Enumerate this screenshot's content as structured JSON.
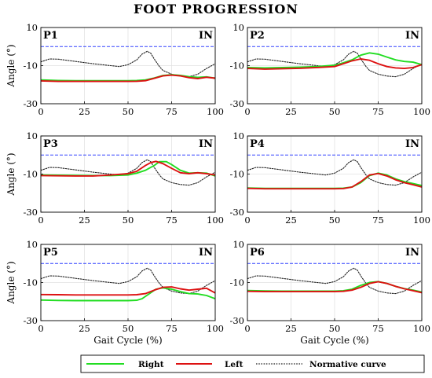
{
  "figure": {
    "title": "FOOT PROGRESSION"
  },
  "colors": {
    "right": "#22dd22",
    "left": "#dd1111",
    "normative": "#222222",
    "reference": "#3344ff",
    "grid": "#e2e2e2"
  },
  "legend": {
    "right_label": "Right",
    "left_label": "Left",
    "normative_label": "Normative curve"
  },
  "chart_data": [
    {
      "type": "line",
      "panel": "P1",
      "corner_label": "IN",
      "xlabel": "",
      "ylabel": "Angle (°)",
      "xlim": [
        0,
        100
      ],
      "ylim": [
        -30,
        10
      ],
      "x_ticks": [
        0,
        25,
        50,
        75,
        100
      ],
      "y_ticks": [
        10,
        -10,
        -30
      ],
      "grid": true,
      "reference_line": 0,
      "series": [
        {
          "name": "Right",
          "x": [
            0,
            10,
            20,
            30,
            40,
            50,
            55,
            60,
            65,
            70,
            75,
            80,
            85,
            90,
            95,
            100
          ],
          "y": [
            -17.5,
            -17.8,
            -17.9,
            -17.9,
            -17.9,
            -17.9,
            -17.8,
            -17.5,
            -16.5,
            -15.2,
            -14.8,
            -15.1,
            -15.8,
            -16.2,
            -15.9,
            -16.6
          ]
        },
        {
          "name": "Left",
          "x": [
            0,
            10,
            20,
            30,
            40,
            50,
            55,
            60,
            65,
            70,
            75,
            80,
            85,
            90,
            95,
            100
          ],
          "y": [
            -18.0,
            -18.3,
            -18.3,
            -18.3,
            -18.3,
            -18.3,
            -18.2,
            -17.9,
            -16.7,
            -15.4,
            -15.0,
            -15.4,
            -16.3,
            -16.8,
            -16.1,
            -16.6
          ]
        },
        {
          "name": "Normative curve",
          "x": [
            0,
            5,
            10,
            20,
            30,
            40,
            45,
            50,
            55,
            58,
            61,
            63,
            65,
            68,
            70,
            75,
            80,
            85,
            90,
            95,
            100
          ],
          "y": [
            -8.0,
            -6.5,
            -6.6,
            -7.8,
            -9.0,
            -10.0,
            -10.5,
            -9.5,
            -7.0,
            -4.0,
            -2.5,
            -3.5,
            -6.5,
            -10.5,
            -12.5,
            -14.5,
            -15.5,
            -15.8,
            -14.5,
            -11.5,
            -9.0
          ]
        }
      ]
    },
    {
      "type": "line",
      "panel": "P2",
      "corner_label": "IN",
      "xlabel": "",
      "ylabel": "",
      "xlim": [
        0,
        100
      ],
      "ylim": [
        -30,
        10
      ],
      "x_ticks": [
        0,
        25,
        50,
        75,
        100
      ],
      "y_ticks": [
        10,
        -10,
        -30
      ],
      "grid": true,
      "reference_line": 0,
      "series": [
        {
          "name": "Right",
          "x": [
            0,
            10,
            20,
            30,
            40,
            50,
            55,
            60,
            65,
            70,
            75,
            80,
            85,
            90,
            95,
            100
          ],
          "y": [
            -11.0,
            -11.2,
            -11.0,
            -10.8,
            -10.5,
            -9.8,
            -8.5,
            -7.0,
            -4.5,
            -3.3,
            -4.0,
            -5.5,
            -7.0,
            -7.8,
            -8.2,
            -9.5
          ]
        },
        {
          "name": "Left",
          "x": [
            0,
            10,
            20,
            30,
            40,
            50,
            55,
            60,
            65,
            70,
            75,
            80,
            85,
            90,
            95,
            100
          ],
          "y": [
            -11.5,
            -11.8,
            -11.6,
            -11.4,
            -11.0,
            -10.5,
            -9.0,
            -7.5,
            -6.5,
            -7.2,
            -9.0,
            -10.5,
            -11.2,
            -11.5,
            -11.0,
            -9.5
          ]
        },
        {
          "name": "Normative curve",
          "x": [
            0,
            5,
            10,
            20,
            30,
            40,
            45,
            50,
            55,
            58,
            61,
            63,
            65,
            68,
            70,
            75,
            80,
            85,
            90,
            95,
            100
          ],
          "y": [
            -8.0,
            -6.5,
            -6.6,
            -7.8,
            -9.0,
            -10.0,
            -10.5,
            -9.5,
            -7.0,
            -4.0,
            -2.5,
            -3.5,
            -6.5,
            -10.5,
            -12.5,
            -14.5,
            -15.5,
            -15.8,
            -14.5,
            -11.5,
            -9.0
          ]
        }
      ]
    },
    {
      "type": "line",
      "panel": "P3",
      "corner_label": "IN",
      "xlabel": "",
      "ylabel": "Angle (°)",
      "xlim": [
        0,
        100
      ],
      "ylim": [
        -30,
        10
      ],
      "x_ticks": [
        0,
        25,
        50,
        75,
        100
      ],
      "y_ticks": [
        10,
        -10,
        -30
      ],
      "grid": true,
      "reference_line": 0,
      "series": [
        {
          "name": "Right",
          "x": [
            0,
            10,
            20,
            30,
            40,
            50,
            55,
            60,
            65,
            68,
            72,
            75,
            80,
            85,
            90,
            95,
            100
          ],
          "y": [
            -10.5,
            -10.6,
            -10.7,
            -10.8,
            -10.8,
            -10.5,
            -9.5,
            -8.0,
            -5.5,
            -3.5,
            -3.5,
            -5.0,
            -8.0,
            -9.5,
            -9.3,
            -9.5,
            -11.0
          ]
        },
        {
          "name": "Left",
          "x": [
            0,
            10,
            20,
            30,
            40,
            50,
            55,
            60,
            63,
            66,
            70,
            75,
            80,
            85,
            90,
            95,
            100
          ],
          "y": [
            -10.8,
            -10.9,
            -11.0,
            -11.0,
            -10.5,
            -9.8,
            -8.5,
            -5.5,
            -4.0,
            -3.3,
            -4.5,
            -7.0,
            -9.3,
            -9.8,
            -9.3,
            -9.8,
            -10.5
          ]
        },
        {
          "name": "Normative curve",
          "x": [
            0,
            5,
            10,
            20,
            30,
            40,
            45,
            50,
            55,
            58,
            61,
            63,
            65,
            68,
            70,
            75,
            80,
            85,
            90,
            95,
            100
          ],
          "y": [
            -8.0,
            -6.5,
            -6.6,
            -7.8,
            -9.0,
            -10.0,
            -10.5,
            -9.5,
            -7.0,
            -4.0,
            -2.5,
            -3.5,
            -6.5,
            -10.5,
            -12.5,
            -14.5,
            -15.5,
            -15.8,
            -14.5,
            -11.5,
            -9.0
          ]
        }
      ]
    },
    {
      "type": "line",
      "panel": "P4",
      "corner_label": "IN",
      "xlabel": "",
      "ylabel": "",
      "xlim": [
        0,
        100
      ],
      "ylim": [
        -30,
        10
      ],
      "x_ticks": [
        0,
        25,
        50,
        75,
        100
      ],
      "y_ticks": [
        10,
        -10,
        -30
      ],
      "grid": true,
      "reference_line": 0,
      "series": [
        {
          "name": "Right",
          "x": [
            0,
            10,
            20,
            30,
            40,
            50,
            55,
            60,
            65,
            70,
            75,
            80,
            85,
            90,
            95,
            100
          ],
          "y": [
            -17.3,
            -17.5,
            -17.5,
            -17.5,
            -17.5,
            -17.5,
            -17.4,
            -16.8,
            -14.5,
            -10.8,
            -9.5,
            -10.5,
            -12.5,
            -14.0,
            -15.0,
            -16.0
          ]
        },
        {
          "name": "Left",
          "x": [
            0,
            10,
            20,
            30,
            40,
            50,
            55,
            60,
            65,
            70,
            75,
            80,
            85,
            90,
            95,
            100
          ],
          "y": [
            -17.5,
            -17.7,
            -17.7,
            -17.7,
            -17.7,
            -17.7,
            -17.6,
            -16.8,
            -14.0,
            -10.5,
            -9.7,
            -11.0,
            -13.0,
            -14.5,
            -15.6,
            -16.8
          ]
        },
        {
          "name": "Normative curve",
          "x": [
            0,
            5,
            10,
            20,
            30,
            40,
            45,
            50,
            55,
            58,
            61,
            63,
            65,
            68,
            70,
            75,
            80,
            85,
            90,
            95,
            100
          ],
          "y": [
            -8.0,
            -6.5,
            -6.6,
            -7.8,
            -9.0,
            -10.0,
            -10.5,
            -9.5,
            -7.0,
            -4.0,
            -2.5,
            -3.5,
            -6.5,
            -10.5,
            -12.5,
            -14.5,
            -15.5,
            -15.8,
            -14.5,
            -11.5,
            -9.0
          ]
        }
      ]
    },
    {
      "type": "line",
      "panel": "P5",
      "corner_label": "IN",
      "xlabel": "Gait Cycle (%)",
      "ylabel": "Angle (°)",
      "xlim": [
        0,
        100
      ],
      "ylim": [
        -30,
        10
      ],
      "x_ticks": [
        0,
        25,
        50,
        75,
        100
      ],
      "y_ticks": [
        10,
        -10,
        -30
      ],
      "grid": true,
      "reference_line": 0,
      "series": [
        {
          "name": "Right",
          "x": [
            0,
            10,
            20,
            30,
            40,
            50,
            55,
            58,
            62,
            66,
            70,
            75,
            80,
            85,
            90,
            95,
            100
          ],
          "y": [
            -19.2,
            -19.4,
            -19.5,
            -19.5,
            -19.5,
            -19.5,
            -19.3,
            -18.5,
            -16.0,
            -13.5,
            -12.8,
            -13.5,
            -14.8,
            -15.8,
            -16.0,
            -16.8,
            -18.5
          ]
        },
        {
          "name": "Left",
          "x": [
            0,
            10,
            20,
            30,
            40,
            50,
            55,
            60,
            65,
            70,
            75,
            80,
            85,
            90,
            95,
            100
          ],
          "y": [
            -16.3,
            -16.4,
            -16.5,
            -16.5,
            -16.5,
            -16.5,
            -16.4,
            -15.8,
            -14.0,
            -12.5,
            -12.3,
            -13.3,
            -14.0,
            -13.5,
            -13.0,
            -15.5
          ]
        },
        {
          "name": "Normative curve",
          "x": [
            0,
            5,
            10,
            20,
            30,
            40,
            45,
            50,
            55,
            58,
            61,
            63,
            65,
            68,
            70,
            75,
            80,
            85,
            90,
            95,
            100
          ],
          "y": [
            -8.0,
            -6.5,
            -6.6,
            -7.8,
            -9.0,
            -10.0,
            -10.5,
            -9.5,
            -7.0,
            -4.0,
            -2.5,
            -3.5,
            -6.5,
            -10.5,
            -12.5,
            -14.5,
            -15.5,
            -15.8,
            -14.5,
            -11.5,
            -9.0
          ]
        }
      ]
    },
    {
      "type": "line",
      "panel": "P6",
      "corner_label": "IN",
      "xlabel": "Gait Cycle (%)",
      "ylabel": "",
      "xlim": [
        0,
        100
      ],
      "ylim": [
        -30,
        10
      ],
      "x_ticks": [
        0,
        25,
        50,
        75,
        100
      ],
      "y_ticks": [
        10,
        -10,
        -30
      ],
      "grid": true,
      "reference_line": 0,
      "series": [
        {
          "name": "Right",
          "x": [
            0,
            10,
            20,
            30,
            40,
            50,
            55,
            60,
            65,
            70,
            75,
            80,
            85,
            90,
            95,
            100
          ],
          "y": [
            -14.2,
            -14.4,
            -14.5,
            -14.5,
            -14.5,
            -14.5,
            -14.3,
            -13.5,
            -11.5,
            -10.0,
            -9.5,
            -10.5,
            -12.0,
            -13.2,
            -14.0,
            -15.0
          ]
        },
        {
          "name": "Left",
          "x": [
            0,
            10,
            20,
            30,
            40,
            50,
            55,
            60,
            65,
            70,
            75,
            80,
            85,
            90,
            95,
            100
          ],
          "y": [
            -14.6,
            -14.8,
            -14.8,
            -14.8,
            -14.8,
            -14.8,
            -14.6,
            -14.0,
            -12.5,
            -10.5,
            -9.6,
            -10.5,
            -12.0,
            -13.3,
            -14.3,
            -15.3
          ]
        },
        {
          "name": "Normative curve",
          "x": [
            0,
            5,
            10,
            20,
            30,
            40,
            45,
            50,
            55,
            58,
            61,
            63,
            65,
            68,
            70,
            75,
            80,
            85,
            90,
            95,
            100
          ],
          "y": [
            -8.0,
            -6.5,
            -6.6,
            -7.8,
            -9.0,
            -10.0,
            -10.5,
            -9.5,
            -7.0,
            -4.0,
            -2.5,
            -3.5,
            -6.5,
            -10.5,
            -12.5,
            -14.5,
            -15.5,
            -15.8,
            -14.5,
            -11.5,
            -9.0
          ]
        }
      ]
    }
  ]
}
